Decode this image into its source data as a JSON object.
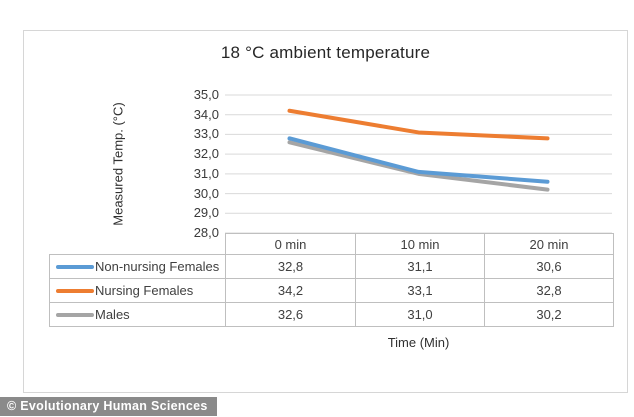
{
  "watermark": "© Evolutionary Human Sciences",
  "chart_data": {
    "type": "line",
    "title": "18 °C ambient temperature",
    "xlabel": "Time (Min)",
    "ylabel": "Measured Temp. (°C)",
    "categories": [
      "0 min",
      "10 min",
      "20 min"
    ],
    "series": [
      {
        "name": "Non-nursing Females",
        "color": "#5B9BD5",
        "values": [
          32.8,
          31.1,
          30.6
        ],
        "display_values": [
          "32,8",
          "31,1",
          "30,6"
        ]
      },
      {
        "name": "Nursing Females",
        "color": "#ED7D31",
        "values": [
          34.2,
          33.1,
          32.8
        ],
        "display_values": [
          "34,2",
          "33,1",
          "32,8"
        ]
      },
      {
        "name": "Males",
        "color": "#A5A5A5",
        "values": [
          32.6,
          31.0,
          30.2
        ],
        "display_values": [
          "32,6",
          "31,0",
          "30,2"
        ]
      }
    ],
    "ylim": [
      28,
      35
    ],
    "yticks": [
      "35,0",
      "34,0",
      "33,0",
      "32,0",
      "31,0",
      "30,0",
      "29,0",
      "28,0"
    ],
    "grid": true,
    "gridline_color": "#d9d9d9",
    "legend_position": "table-left",
    "decimal_separator": ","
  }
}
